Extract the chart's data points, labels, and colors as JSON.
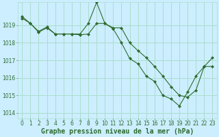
{
  "title": "Graphe pression niveau de la mer (hPa)",
  "bg_color": "#cceeff",
  "grid_color": "#aaddcc",
  "line_color": "#2d6a2d",
  "xlim": [
    -0.5,
    23.5
  ],
  "ylim": [
    1013.7,
    1020.3
  ],
  "yticks": [
    1014,
    1015,
    1016,
    1017,
    1018,
    1019
  ],
  "xticks": [
    0,
    1,
    2,
    3,
    4,
    5,
    6,
    7,
    8,
    9,
    10,
    11,
    12,
    13,
    14,
    15,
    16,
    17,
    18,
    19,
    20,
    21,
    22,
    23
  ],
  "line1_x": [
    0,
    1,
    2,
    3,
    4,
    5,
    6,
    7,
    8,
    9,
    10,
    11,
    12,
    13,
    14,
    15,
    16,
    17,
    18,
    19,
    20,
    21,
    22,
    23
  ],
  "line1_y": [
    1019.5,
    1019.1,
    1018.6,
    1018.85,
    1018.5,
    1018.5,
    1018.5,
    1018.45,
    1018.5,
    1019.1,
    1019.1,
    1018.85,
    1018.85,
    1018.0,
    1017.55,
    1017.15,
    1016.65,
    1016.1,
    1015.5,
    1015.0,
    1014.9,
    1015.3,
    1016.65,
    1017.15
  ],
  "line2_x": [
    0,
    1,
    2,
    3,
    4,
    5,
    6,
    7,
    8,
    9,
    10,
    11,
    12,
    13,
    14,
    15,
    16,
    17,
    18,
    19,
    20,
    21,
    22,
    23
  ],
  "line2_y": [
    1019.4,
    1019.1,
    1018.65,
    1018.9,
    1018.5,
    1018.5,
    1018.5,
    1018.5,
    1019.1,
    1020.3,
    1019.1,
    1018.8,
    1018.0,
    1017.1,
    1016.8,
    1016.1,
    1015.8,
    1015.0,
    1014.8,
    1014.4,
    1015.2,
    1016.1,
    1016.65,
    1016.65
  ],
  "title_fontsize": 7,
  "tick_fontsize": 5.5
}
